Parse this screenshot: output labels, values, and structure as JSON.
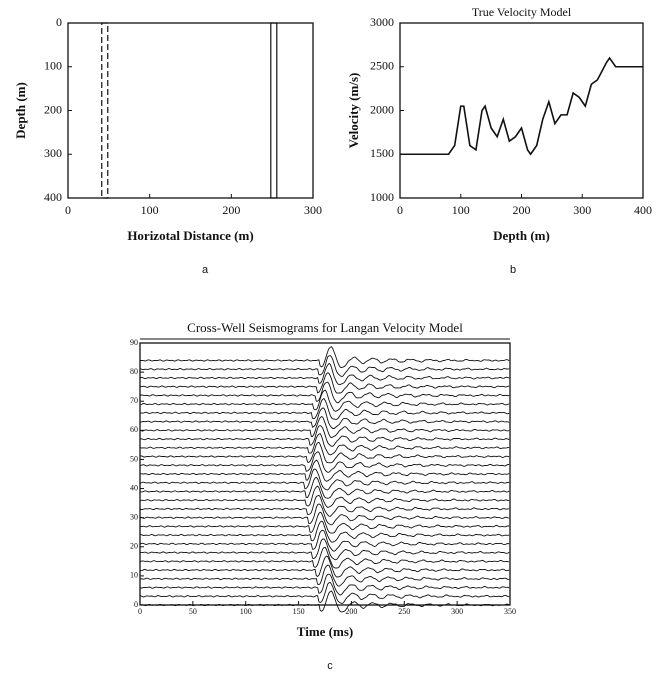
{
  "chart_data": [
    {
      "type": "wells",
      "caption": "a",
      "x_label": "Horizotal Distance (m)",
      "y_label": "Depth (m)",
      "x": [
        45,
        252
      ],
      "xlim": [
        0,
        300
      ],
      "xticks": [
        0,
        100,
        200,
        300
      ],
      "ylim": [
        400,
        0
      ],
      "yticks": [
        0,
        100,
        200,
        300,
        400
      ]
    },
    {
      "type": "line",
      "caption": "b",
      "title": "True Velocity Model",
      "x_label": "Depth (m)",
      "y_label": "Velocity (m/s)",
      "x": [
        0,
        80,
        90,
        100,
        105,
        115,
        125,
        135,
        140,
        150,
        160,
        170,
        180,
        190,
        200,
        210,
        215,
        225,
        235,
        245,
        255,
        265,
        275,
        285,
        295,
        305,
        315,
        325,
        340,
        345,
        355,
        400
      ],
      "values": [
        1500,
        1500,
        1600,
        2050,
        2050,
        1600,
        1550,
        2000,
        2050,
        1800,
        1700,
        1900,
        1650,
        1700,
        1800,
        1550,
        1500,
        1600,
        1900,
        2100,
        1850,
        1950,
        1950,
        2200,
        2150,
        2050,
        2300,
        2350,
        2550,
        2600,
        2500,
        2500
      ],
      "color": "#111111",
      "xlim": [
        0,
        400
      ],
      "xticks": [
        0,
        100,
        200,
        300,
        400
      ],
      "ylim": [
        1000,
        3000
      ],
      "yticks": [
        1000,
        1500,
        2000,
        2500,
        3000
      ]
    },
    {
      "type": "wiggle",
      "caption": "c",
      "title": "Cross-Well Seismograms for Langan Velocity Model",
      "x_label": "Time (ms)",
      "y": [
        0,
        3,
        6,
        9,
        12,
        15,
        18,
        21,
        24,
        27,
        30,
        33,
        36,
        39,
        42,
        45,
        48,
        51,
        54,
        57,
        60,
        63,
        66,
        69,
        72,
        75,
        78,
        81,
        84
      ],
      "x": [
        180,
        179,
        178,
        177,
        176,
        174,
        173,
        172,
        171,
        170,
        169,
        168,
        167,
        166,
        165,
        166,
        167,
        168,
        169,
        170,
        171,
        172,
        173,
        174,
        176,
        177,
        178,
        179,
        180
      ],
      "xlim": [
        0,
        350
      ],
      "xticks": [
        0,
        50,
        100,
        150,
        200,
        250,
        300,
        350
      ],
      "ylim": [
        0,
        90
      ],
      "yticks": [
        0,
        10,
        20,
        30,
        40,
        50,
        60,
        70,
        80,
        90
      ]
    }
  ]
}
